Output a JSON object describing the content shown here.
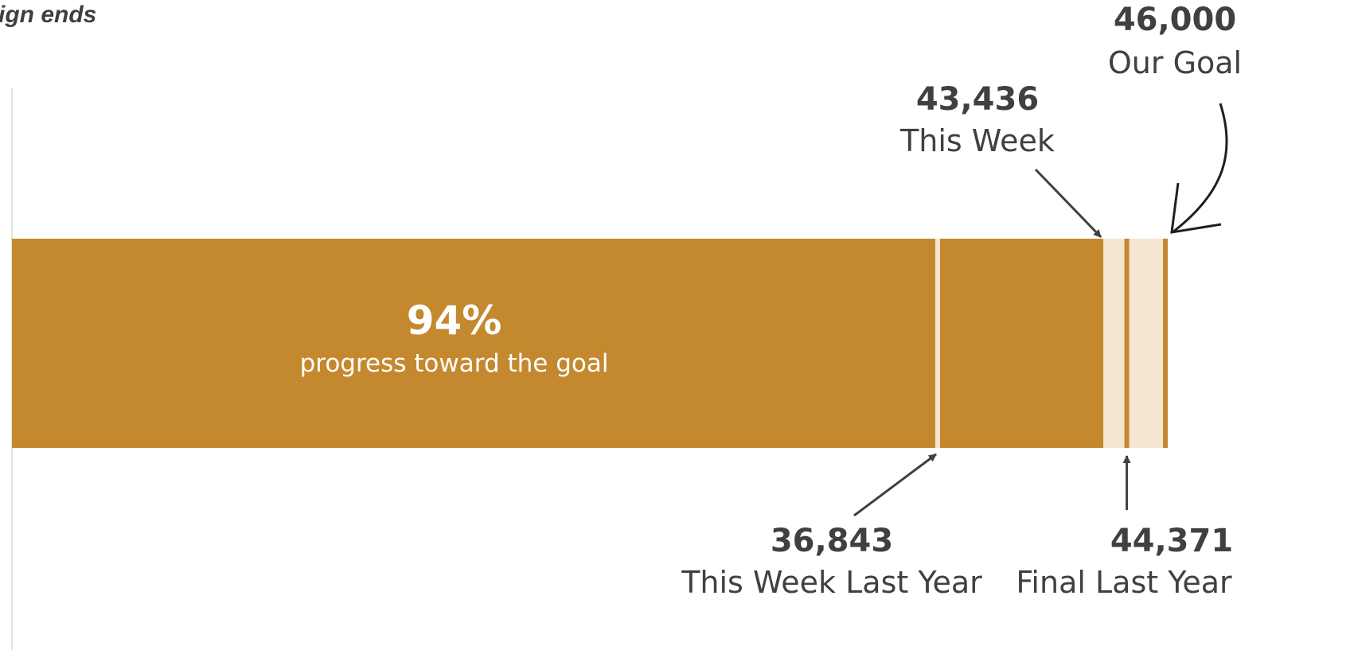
{
  "header": {
    "text": "ign ends"
  },
  "chart_data": {
    "type": "bar",
    "orientation": "horizontal",
    "goal": {
      "value": 46000,
      "value_label": "46,000",
      "label": "Our Goal"
    },
    "current": {
      "value": 43436,
      "value_label": "43,436",
      "label": "This Week"
    },
    "progress": {
      "percent_label": "94%",
      "subtitle": "progress toward the goal"
    },
    "markers": [
      {
        "value": 36843,
        "value_label": "36,843",
        "label": "This Week Last Year"
      },
      {
        "value": 44371,
        "value_label": "44,371",
        "label": "Final Last Year"
      }
    ],
    "colors": {
      "filled": "#c4882e",
      "remaining": "#f4e6d1",
      "marker_on_filled": "#f4e6d1",
      "marker_on_remaining": "#c4882e",
      "arrow": "#404040"
    }
  }
}
